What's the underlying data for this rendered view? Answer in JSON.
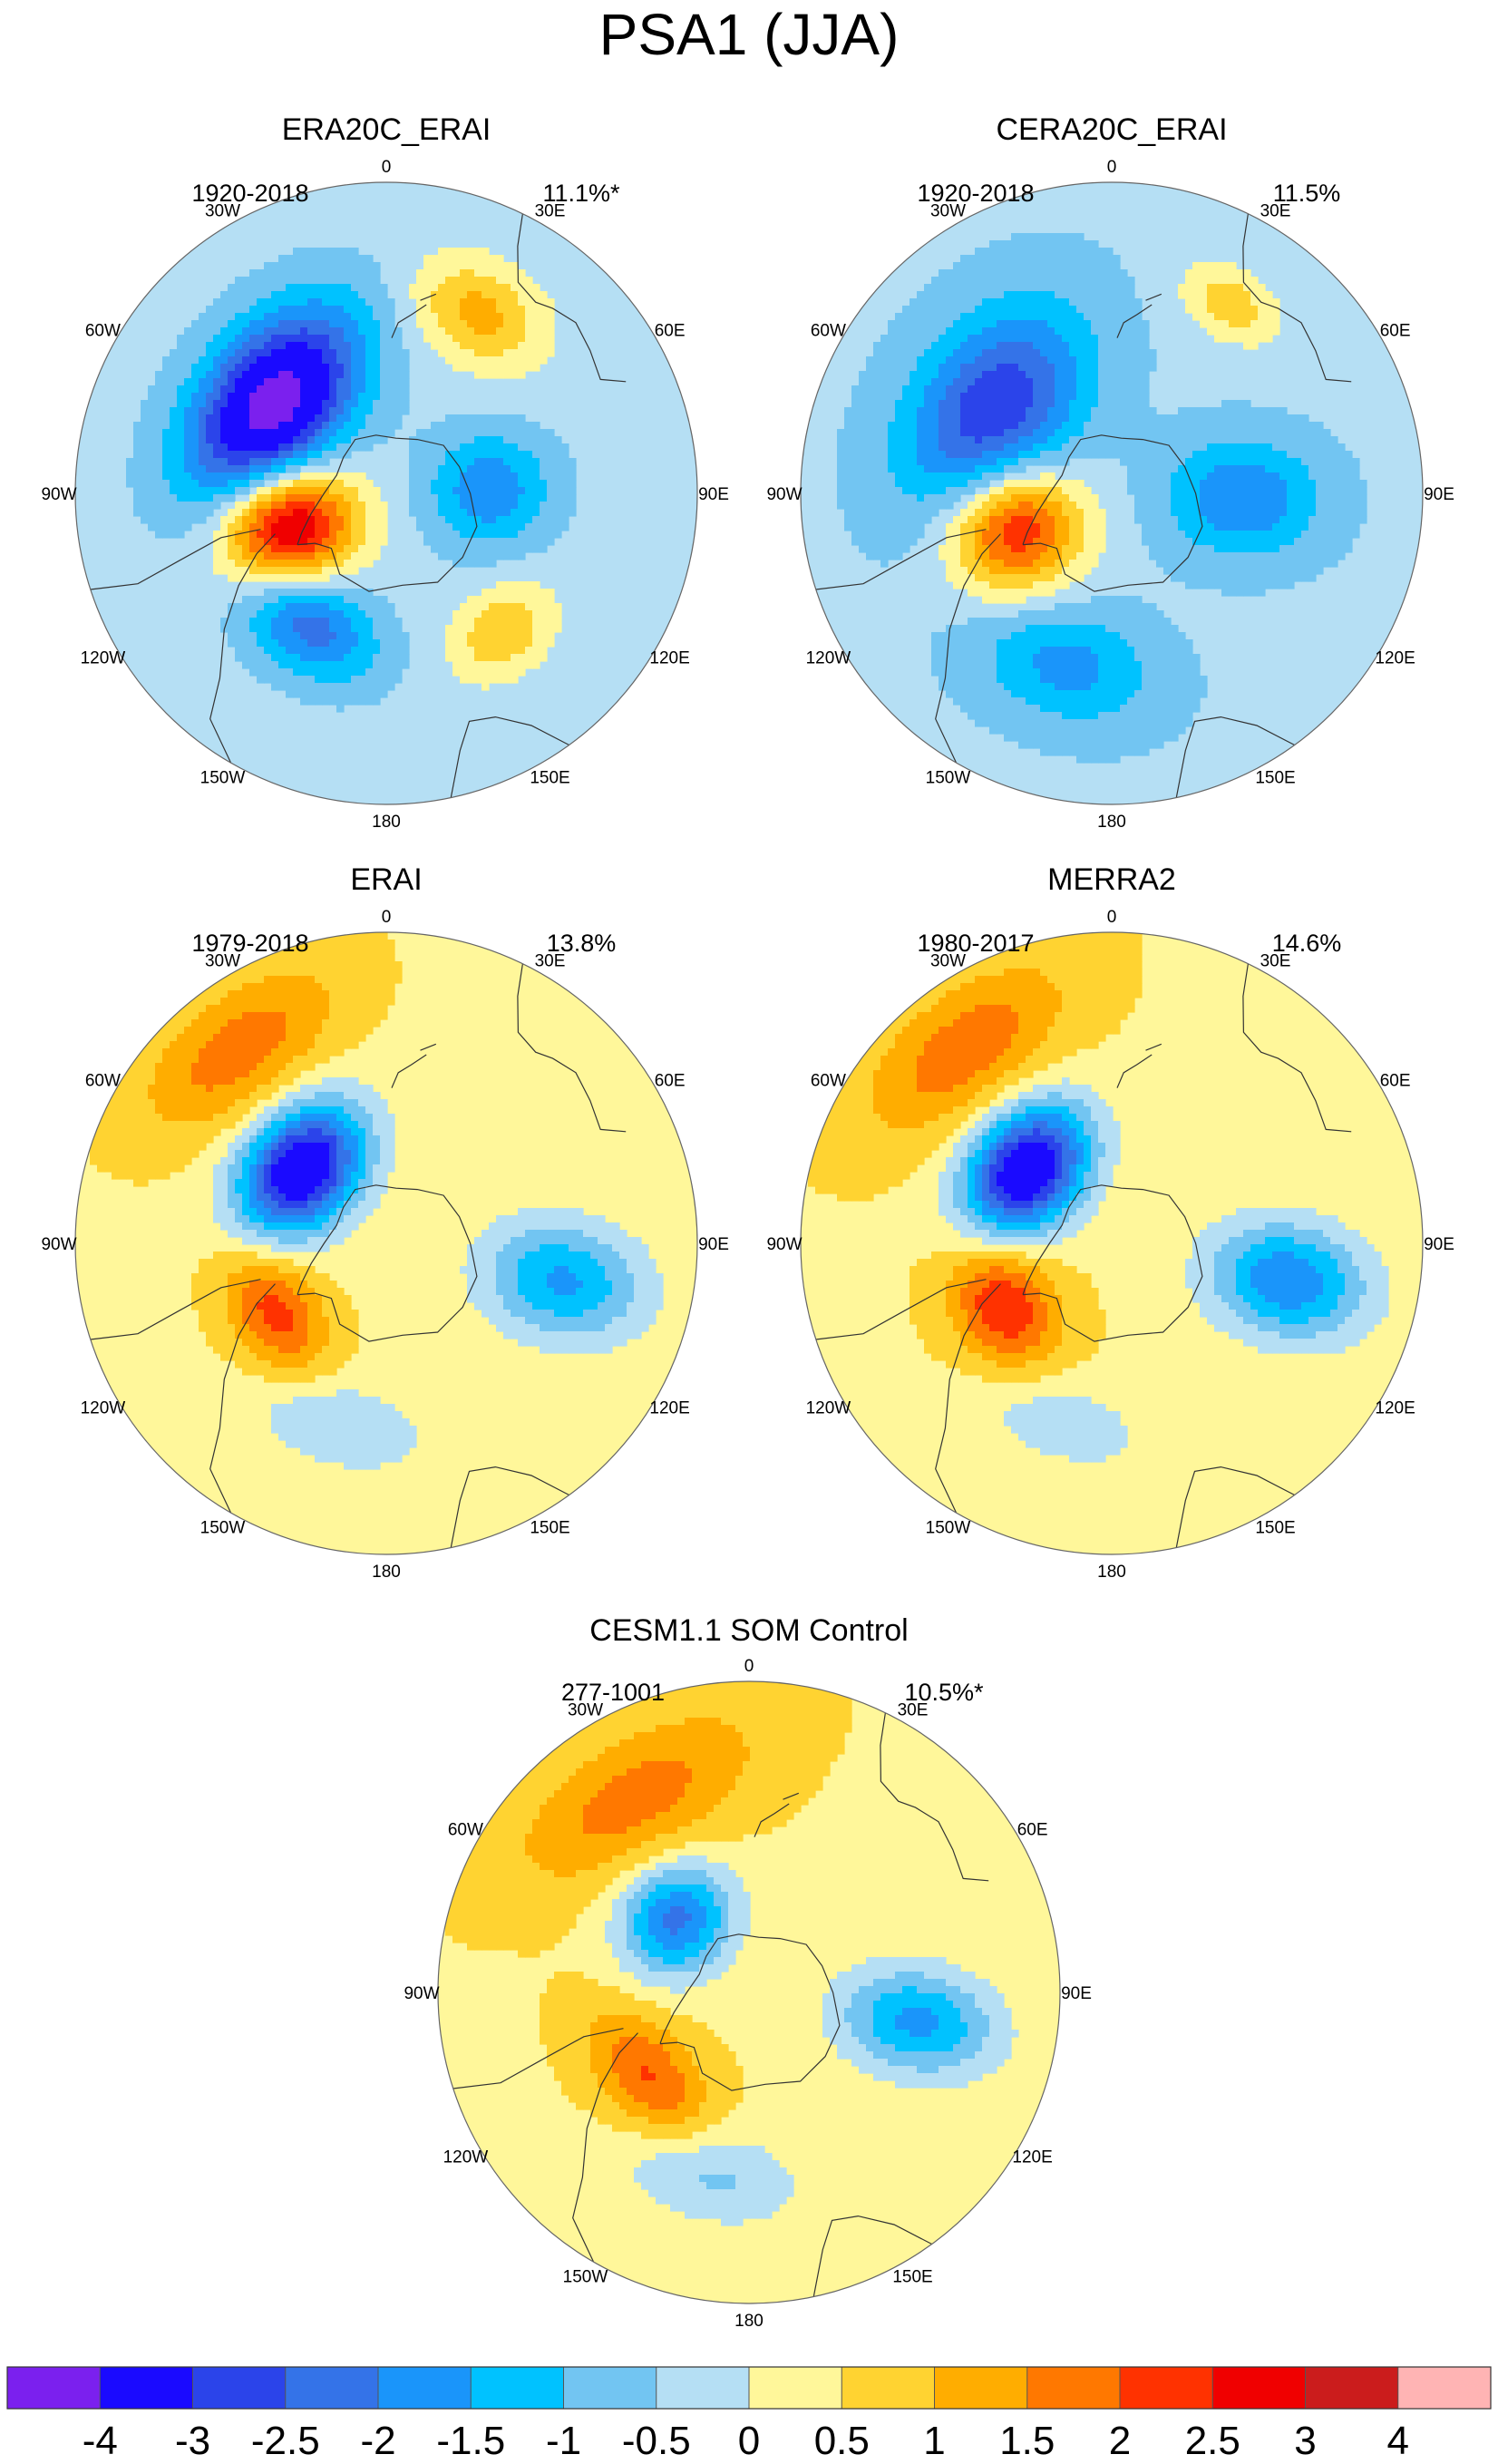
{
  "title": "PSA1 (JJA)",
  "longitude_labels": [
    "0",
    "30E",
    "60E",
    "90E",
    "120E",
    "150E",
    "180",
    "150W",
    "120W",
    "90W",
    "60W",
    "30W"
  ],
  "panels": [
    {
      "name": "ERA20C_ERAI",
      "period": "1920-2018",
      "variance": "11.1%*",
      "blobs": [
        {
          "lon": -72,
          "r": 0.33,
          "sx": 0.13,
          "sy": 0.15,
          "amp": 3.6
        },
        {
          "lon": -128,
          "r": 0.46,
          "sx": 0.24,
          "sy": 0.15,
          "amp": -4.2
        },
        {
          "lon": -30,
          "r": 0.49,
          "sx": 0.16,
          "sy": 0.11,
          "amp": -2.0
        },
        {
          "lon": 92,
          "r": 0.33,
          "sx": 0.13,
          "sy": 0.14,
          "amp": -1.6
        },
        {
          "lon": 40,
          "r": 0.58,
          "sx": 0.12,
          "sy": 0.09,
          "amp": 1.3
        },
        {
          "lon": 153,
          "r": 0.65,
          "sx": 0.15,
          "sy": 0.11,
          "amp": 1.5
        }
      ],
      "bias": -0.3
    },
    {
      "name": "CERA20C_ERAI",
      "period": "1920-2018",
      "variance": "11.5%",
      "blobs": [
        {
          "lon": -70,
          "r": 0.33,
          "sx": 0.14,
          "sy": 0.15,
          "amp": 3.0
        },
        {
          "lon": -125,
          "r": 0.46,
          "sx": 0.25,
          "sy": 0.17,
          "amp": -2.6
        },
        {
          "lon": -15,
          "r": 0.57,
          "sx": 0.2,
          "sy": 0.13,
          "amp": -1.3
        },
        {
          "lon": 88,
          "r": 0.42,
          "sx": 0.13,
          "sy": 0.17,
          "amp": -1.6
        },
        {
          "lon": 148,
          "r": 0.72,
          "sx": 0.12,
          "sy": 0.08,
          "amp": 1.2
        }
      ],
      "bias": -0.4
    },
    {
      "name": "ERAI",
      "period": "1979-2018",
      "variance": "13.8%",
      "blobs": [
        {
          "lon": -58,
          "r": 0.42,
          "sx": 0.15,
          "sy": 0.1,
          "amp": 1.8
        },
        {
          "lon": -131,
          "r": 0.36,
          "sx": 0.16,
          "sy": 0.12,
          "amp": -4.3
        },
        {
          "lon": -143,
          "r": 0.78,
          "sx": 0.26,
          "sy": 0.13,
          "amp": 1.4
        },
        {
          "lon": 78,
          "r": 0.58,
          "sx": 0.13,
          "sy": 0.18,
          "amp": -2.0
        },
        {
          "lon": -15,
          "r": 0.6,
          "sx": 0.2,
          "sy": 0.1,
          "amp": -0.9
        }
      ],
      "bias": 0.4
    },
    {
      "name": "MERRA2",
      "period": "1980-2017",
      "variance": "14.6%",
      "blobs": [
        {
          "lon": -60,
          "r": 0.4,
          "sx": 0.14,
          "sy": 0.11,
          "amp": 2.1
        },
        {
          "lon": -131,
          "r": 0.36,
          "sx": 0.16,
          "sy": 0.12,
          "amp": -4.3
        },
        {
          "lon": -143,
          "r": 0.78,
          "sx": 0.26,
          "sy": 0.13,
          "amp": 1.4
        },
        {
          "lon": 78,
          "r": 0.58,
          "sx": 0.13,
          "sy": 0.18,
          "amp": -2.4
        },
        {
          "lon": -15,
          "r": 0.6,
          "sx": 0.2,
          "sy": 0.1,
          "amp": -0.8
        }
      ],
      "bias": 0.45
    },
    {
      "name": "CESM1.1 SOM Control",
      "period": "277-1001",
      "variance": "10.5%*",
      "blobs": [
        {
          "lon": -50,
          "r": 0.42,
          "sx": 0.17,
          "sy": 0.1,
          "amp": 1.6
        },
        {
          "lon": -135,
          "r": 0.33,
          "sx": 0.13,
          "sy": 0.12,
          "amp": -2.6
        },
        {
          "lon": -150,
          "r": 0.72,
          "sx": 0.3,
          "sy": 0.14,
          "amp": 1.3
        },
        {
          "lon": 80,
          "r": 0.55,
          "sx": 0.12,
          "sy": 0.18,
          "amp": -2.1
        },
        {
          "lon": -12,
          "r": 0.6,
          "sx": 0.2,
          "sy": 0.11,
          "amp": -1.1
        }
      ],
      "bias": 0.45
    }
  ],
  "colorbar": {
    "colors": [
      "#7b20ee",
      "#1a0aff",
      "#2b44ea",
      "#3473e8",
      "#1a95fa",
      "#00c2ff",
      "#72c5f2",
      "#b5dff4",
      "#fff79a",
      "#ffd331",
      "#ffad00",
      "#ff7800",
      "#ff3200",
      "#f00000",
      "#cb1c1c",
      "#ffb4b4"
    ],
    "labels": [
      "-4",
      "-3",
      "-2.5",
      "-2",
      "-1.5",
      "-1",
      "-0.5",
      "0",
      "0.5",
      "1",
      "1.5",
      "2",
      "2.5",
      "3",
      "4"
    ],
    "levels": [
      -4,
      -3,
      -2.5,
      -2,
      -1.5,
      -1,
      -0.5,
      0,
      0.5,
      1,
      1.5,
      2,
      2.5,
      3,
      4
    ]
  },
  "chart_data": {
    "type": "heatmap",
    "title": "PSA1 (JJA)",
    "projection": "south-polar-stereographic",
    "panels": [
      "ERA20C_ERAI",
      "CERA20C_ERAI",
      "ERAI",
      "MERRA2",
      "CESM1.1 SOM Control"
    ],
    "colorbar_levels": [
      -4,
      -3,
      -2.5,
      -2,
      -1.5,
      -1,
      -0.5,
      0,
      0.5,
      1,
      1.5,
      2,
      2.5,
      3,
      4
    ]
  }
}
